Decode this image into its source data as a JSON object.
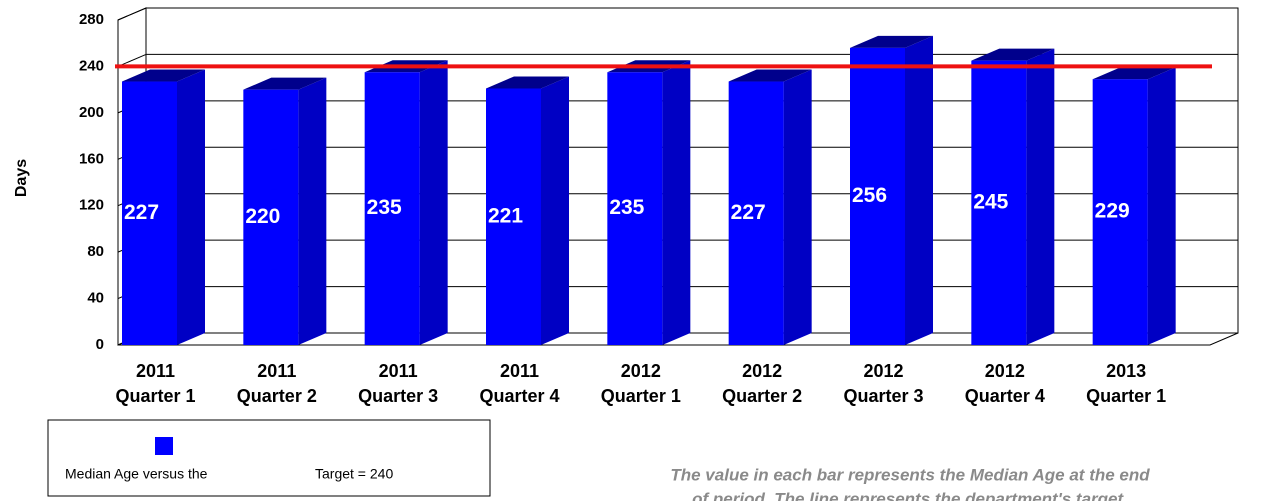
{
  "chart_data": {
    "type": "bar3d",
    "y_label": "Days",
    "categories": [
      "2011 Quarter 1",
      "2011 Quarter 2",
      "2011 Quarter 3",
      "2011 Quarter 4",
      "2012 Quarter 1",
      "2012 Quarter 2",
      "2012 Quarter 3",
      "2012 Quarter 4",
      "2013 Quarter 1"
    ],
    "values": [
      227,
      220,
      235,
      221,
      235,
      227,
      256,
      245,
      229
    ],
    "color": "#0000ff",
    "target": 240,
    "target_color": "#ee1111",
    "ylim": [
      0,
      280
    ],
    "yticks": [
      0,
      40,
      80,
      120,
      160,
      200,
      240,
      280
    ],
    "grid": true,
    "legend": {
      "series_label": "Median Age versus the",
      "target_label": "Target = 240"
    },
    "note": [
      "The value in each bar represents the Median Age at the end",
      "of period.  The line represents the department's target."
    ]
  }
}
